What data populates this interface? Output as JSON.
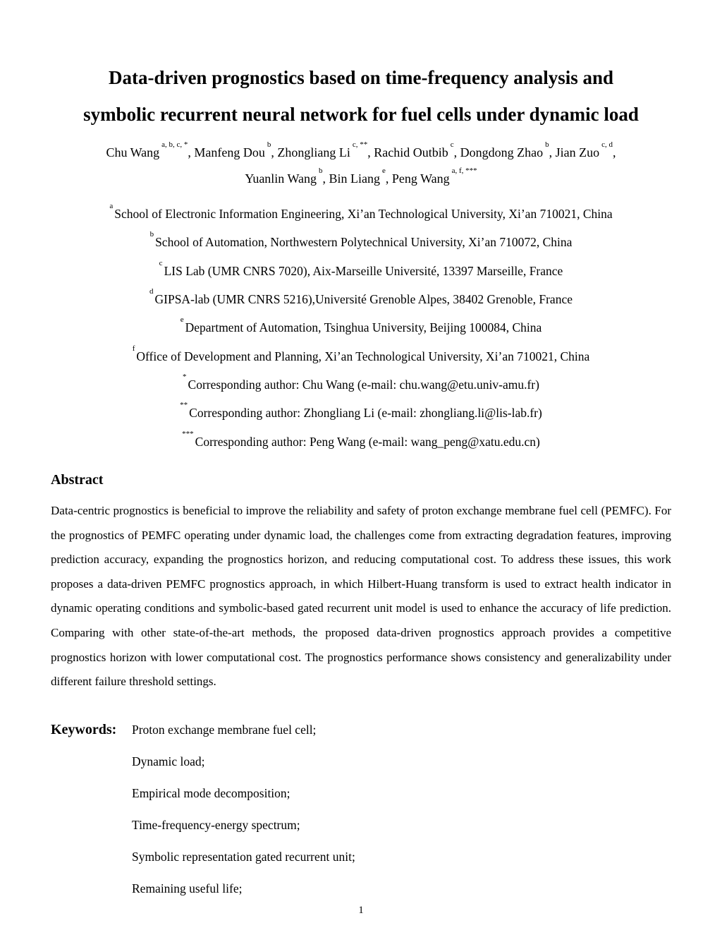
{
  "title": {
    "lines": [
      "Data-driven prognostics based on time-frequency analysis and",
      "symbolic recurrent neural network for fuel cells under dynamic load"
    ]
  },
  "authors": {
    "line1": [
      {
        "name": "Chu Wang",
        "sup": "a, b, c, *",
        "sep": ", "
      },
      {
        "name": "Manfeng Dou",
        "sup": "b",
        "sep": ", "
      },
      {
        "name": "Zhongliang Li",
        "sup": "c, **",
        "sep": ", "
      },
      {
        "name": "Rachid Outbib",
        "sup": "c",
        "sep": ", "
      },
      {
        "name": "Dongdong Zhao",
        "sup": "b",
        "sep": ", "
      },
      {
        "name": "Jian Zuo",
        "sup": "c, d",
        "sep": ","
      }
    ],
    "line2": [
      {
        "name": "Yuanlin Wang",
        "sup": "b",
        "sep": ", "
      },
      {
        "name": "Bin Liang",
        "sup": "e",
        "sep": ", "
      },
      {
        "name": "Peng Wang",
        "sup": "a, f, ***",
        "sep": ""
      }
    ]
  },
  "affiliations": [
    {
      "sup": "a",
      "text": "School of Electronic Information Engineering, Xi’an Technological University, Xi’an 710021, China"
    },
    {
      "sup": "b",
      "text": "School of Automation, Northwestern Polytechnical University, Xi’an 710072, China"
    },
    {
      "sup": "c",
      "text": "LIS Lab (UMR CNRS 7020), Aix-Marseille Université, 13397 Marseille, France"
    },
    {
      "sup": "d",
      "text": "GIPSA-lab (UMR CNRS 5216),Université Grenoble Alpes, 38402 Grenoble, France"
    },
    {
      "sup": "e",
      "text": "Department of Automation, Tsinghua University, Beijing 100084, China"
    },
    {
      "sup": "f",
      "text": "Office of Development and Planning, Xi’an Technological University, Xi’an 710021, China"
    }
  ],
  "correspondence": [
    {
      "sup": "*",
      "text": "Corresponding author: Chu Wang (e-mail: chu.wang@etu.univ-amu.fr)"
    },
    {
      "sup": "**",
      "text": "Corresponding author: Zhongliang Li (e-mail: zhongliang.li@lis-lab.fr)"
    },
    {
      "sup": "***",
      "text": "Corresponding author: Peng Wang (e-mail: wang_peng@xatu.edu.cn)"
    }
  ],
  "abstract": {
    "heading": "Abstract",
    "body": "Data-centric prognostics is beneficial to improve the reliability and safety of proton exchange membrane fuel cell (PEMFC). For the prognostics of PEMFC operating under dynamic load, the challenges come from extracting degradation features, improving prediction accuracy, expanding the prognostics horizon, and reducing computational cost. To address these issues, this work proposes a data-driven PEMFC prognostics approach, in which Hilbert-Huang transform is used to extract health indicator in dynamic operating conditions and symbolic-based gated recurrent unit model is used to enhance the accuracy of life prediction. Comparing with other state-of-the-art methods, the proposed data-driven prognostics approach provides a competitive prognostics horizon with lower computational cost. The prognostics performance shows consistency and generalizability under different failure threshold settings."
  },
  "keywords": {
    "label": "Keywords:",
    "items": [
      "Proton exchange membrane fuel cell;",
      "Dynamic load;",
      "Empirical mode decomposition;",
      "Time-frequency-energy spectrum;",
      "Symbolic representation gated recurrent unit;",
      "Remaining useful life;"
    ]
  },
  "page": {
    "number": "1"
  }
}
